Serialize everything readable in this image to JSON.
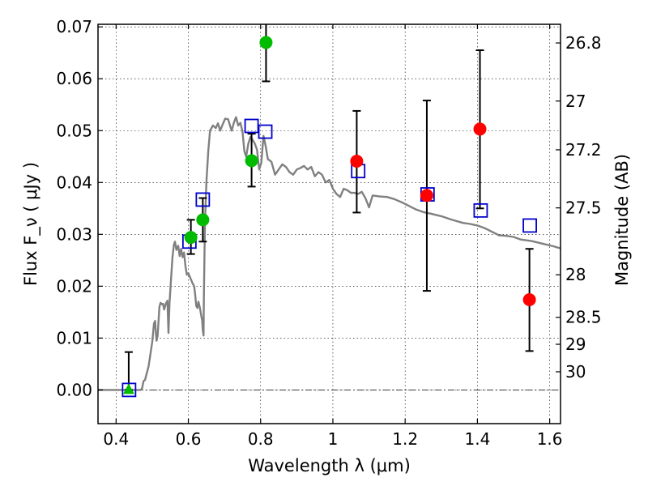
{
  "chart_data": {
    "type": "scatter",
    "xlabel": "Wavelength  λ (μm)",
    "ylabel": "Flux  F_ν  ( μJy )",
    "ylabel_right": "Magnitude (AB)",
    "xlim": [
      0.35,
      1.63
    ],
    "ylim": [
      -0.0065,
      0.0705
    ],
    "x_ticks": [
      0.4,
      0.6,
      0.8,
      1.0,
      1.2,
      1.4,
      1.6
    ],
    "x_tick_labels": [
      "0.4",
      "0.6",
      "0.8",
      "1",
      "1.2",
      "1.4",
      "1.6"
    ],
    "y_ticks": [
      0.0,
      0.01,
      0.02,
      0.03,
      0.04,
      0.05,
      0.06,
      0.07
    ],
    "y_tick_labels": [
      "0.00",
      "0.01",
      "0.02",
      "0.03",
      "0.04",
      "0.05",
      "0.06",
      "0.07"
    ],
    "right_ticks": [
      {
        "label": "26.8",
        "flux": 0.0669
      },
      {
        "label": "27",
        "flux": 0.0557
      },
      {
        "label": "27.2",
        "flux": 0.0463
      },
      {
        "label": "27.5",
        "flux": 0.0351
      },
      {
        "label": "28",
        "flux": 0.0222
      },
      {
        "label": "28.5",
        "flux": 0.014
      },
      {
        "label": "29",
        "flux": 0.0088
      },
      {
        "label": "30",
        "flux": 0.0035
      }
    ],
    "grid": true,
    "zero_line": true,
    "colors": {
      "model": "#808080",
      "observed_green": "#00bb00",
      "observed_red": "#ff0000",
      "model_boxes": "#0000cc",
      "errorbar": "#000000"
    },
    "series": [
      {
        "kind": "line",
        "points": [
          [
            0.35,
            0.0
          ],
          [
            0.468,
            0.0
          ],
          [
            0.472,
            0.0003
          ],
          [
            0.476,
            0.0017
          ],
          [
            0.48,
            0.0019
          ],
          [
            0.49,
            0.0046
          ],
          [
            0.5,
            0.0092
          ],
          [
            0.505,
            0.0128
          ],
          [
            0.508,
            0.0133
          ],
          [
            0.51,
            0.011
          ],
          [
            0.512,
            0.0095
          ],
          [
            0.515,
            0.0104
          ],
          [
            0.52,
            0.016
          ],
          [
            0.523,
            0.0168
          ],
          [
            0.527,
            0.0165
          ],
          [
            0.53,
            0.0166
          ],
          [
            0.533,
            0.0155
          ],
          [
            0.538,
            0.0167
          ],
          [
            0.542,
            0.0172
          ],
          [
            0.545,
            0.011
          ],
          [
            0.548,
            0.0168
          ],
          [
            0.552,
            0.0212
          ],
          [
            0.556,
            0.0255
          ],
          [
            0.56,
            0.028
          ],
          [
            0.563,
            0.0286
          ],
          [
            0.567,
            0.027
          ],
          [
            0.572,
            0.0278
          ],
          [
            0.576,
            0.0258
          ],
          [
            0.58,
            0.0272
          ],
          [
            0.584,
            0.0256
          ],
          [
            0.588,
            0.0265
          ],
          [
            0.592,
            0.0238
          ],
          [
            0.596,
            0.0222
          ],
          [
            0.6,
            0.0225
          ],
          [
            0.606,
            0.0215
          ],
          [
            0.612,
            0.0205
          ],
          [
            0.616,
            0.02
          ],
          [
            0.619,
            0.0183
          ],
          [
            0.622,
            0.0162
          ],
          [
            0.625,
            0.0158
          ],
          [
            0.628,
            0.017
          ],
          [
            0.632,
            0.0158
          ],
          [
            0.634,
            0.015
          ],
          [
            0.636,
            0.0142
          ],
          [
            0.638,
            0.0135
          ],
          [
            0.64,
            0.0115
          ],
          [
            0.642,
            0.0105
          ],
          [
            0.643,
            0.018
          ],
          [
            0.646,
            0.032
          ],
          [
            0.65,
            0.04
          ],
          [
            0.655,
            0.046
          ],
          [
            0.66,
            0.05
          ],
          [
            0.668,
            0.051
          ],
          [
            0.676,
            0.0505
          ],
          [
            0.682,
            0.0514
          ],
          [
            0.688,
            0.05
          ],
          [
            0.695,
            0.0512
          ],
          [
            0.702,
            0.0523
          ],
          [
            0.71,
            0.0522
          ],
          [
            0.716,
            0.0508
          ],
          [
            0.72,
            0.05
          ],
          [
            0.726,
            0.0515
          ],
          [
            0.732,
            0.0526
          ],
          [
            0.738,
            0.051
          ],
          [
            0.744,
            0.0515
          ],
          [
            0.75,
            0.0498
          ],
          [
            0.755,
            0.046
          ],
          [
            0.76,
            0.045
          ],
          [
            0.766,
            0.0475
          ],
          [
            0.772,
            0.0488
          ],
          [
            0.778,
            0.0482
          ],
          [
            0.784,
            0.0475
          ],
          [
            0.79,
            0.0463
          ],
          [
            0.796,
            0.0425
          ],
          [
            0.802,
            0.0438
          ],
          [
            0.808,
            0.049
          ],
          [
            0.814,
            0.047
          ],
          [
            0.82,
            0.0445
          ],
          [
            0.83,
            0.044
          ],
          [
            0.84,
            0.0415
          ],
          [
            0.85,
            0.0425
          ],
          [
            0.86,
            0.0435
          ],
          [
            0.87,
            0.043
          ],
          [
            0.88,
            0.042
          ],
          [
            0.89,
            0.0415
          ],
          [
            0.9,
            0.0425
          ],
          [
            0.91,
            0.0428
          ],
          [
            0.92,
            0.0432
          ],
          [
            0.93,
            0.0425
          ],
          [
            0.94,
            0.043
          ],
          [
            0.95,
            0.0412
          ],
          [
            0.96,
            0.042
          ],
          [
            0.97,
            0.0415
          ],
          [
            0.98,
            0.04
          ],
          [
            0.99,
            0.0405
          ],
          [
            1.0,
            0.0388
          ],
          [
            1.01,
            0.0378
          ],
          [
            1.02,
            0.0372
          ],
          [
            1.03,
            0.0388
          ],
          [
            1.04,
            0.0385
          ],
          [
            1.05,
            0.038
          ],
          [
            1.06,
            0.038
          ],
          [
            1.07,
            0.0378
          ],
          [
            1.08,
            0.0382
          ],
          [
            1.09,
            0.037
          ],
          [
            1.1,
            0.0352
          ],
          [
            1.11,
            0.0375
          ],
          [
            1.13,
            0.0373
          ],
          [
            1.15,
            0.0372
          ],
          [
            1.17,
            0.0368
          ],
          [
            1.19,
            0.0362
          ],
          [
            1.21,
            0.0355
          ],
          [
            1.23,
            0.0348
          ],
          [
            1.25,
            0.0343
          ],
          [
            1.27,
            0.034
          ],
          [
            1.3,
            0.0335
          ],
          [
            1.33,
            0.0328
          ],
          [
            1.36,
            0.0322
          ],
          [
            1.38,
            0.032
          ],
          [
            1.4,
            0.0317
          ],
          [
            1.42,
            0.0312
          ],
          [
            1.44,
            0.0305
          ],
          [
            1.46,
            0.0298
          ],
          [
            1.48,
            0.0297
          ],
          [
            1.5,
            0.0295
          ],
          [
            1.52,
            0.029
          ],
          [
            1.55,
            0.0287
          ],
          [
            1.58,
            0.0282
          ],
          [
            1.61,
            0.0277
          ],
          [
            1.63,
            0.0273
          ]
        ]
      },
      {
        "kind": "boxes",
        "points": [
          [
            0.436,
            0.0
          ],
          [
            0.603,
            0.0286
          ],
          [
            0.64,
            0.0367
          ],
          [
            0.775,
            0.0509
          ],
          [
            0.813,
            0.0498
          ],
          [
            1.07,
            0.0422
          ],
          [
            1.262,
            0.0377
          ],
          [
            1.409,
            0.0346
          ],
          [
            1.545,
            0.0317
          ]
        ]
      },
      {
        "kind": "points",
        "points": [
          {
            "x": 0.435,
            "y": 0.0,
            "err_lo": 0.0,
            "err_hi": 0.0073,
            "color": "observed_green",
            "marker": "triangle"
          },
          {
            "x": 0.607,
            "y": 0.0294,
            "err_lo": 0.0262,
            "err_hi": 0.0328,
            "color": "observed_green",
            "marker": "circle"
          },
          {
            "x": 0.64,
            "y": 0.0328,
            "err_lo": 0.0286,
            "err_hi": 0.037,
            "color": "observed_green",
            "marker": "circle"
          },
          {
            "x": 0.775,
            "y": 0.0442,
            "err_lo": 0.0392,
            "err_hi": 0.0494,
            "color": "observed_green",
            "marker": "circle"
          },
          {
            "x": 0.815,
            "y": 0.067,
            "err_lo": 0.0595,
            "err_hi": 0.0705,
            "color": "observed_green",
            "marker": "circle"
          },
          {
            "x": 1.066,
            "y": 0.0441,
            "err_lo": 0.0342,
            "err_hi": 0.0538,
            "color": "observed_red",
            "marker": "circle"
          },
          {
            "x": 1.26,
            "y": 0.0375,
            "err_lo": 0.0191,
            "err_hi": 0.0558,
            "color": "observed_red",
            "marker": "circle"
          },
          {
            "x": 1.407,
            "y": 0.0503,
            "err_lo": 0.035,
            "err_hi": 0.0655,
            "color": "observed_red",
            "marker": "circle"
          },
          {
            "x": 1.544,
            "y": 0.0174,
            "err_lo": 0.0075,
            "err_hi": 0.0272,
            "color": "observed_red",
            "marker": "circle"
          }
        ]
      }
    ]
  }
}
